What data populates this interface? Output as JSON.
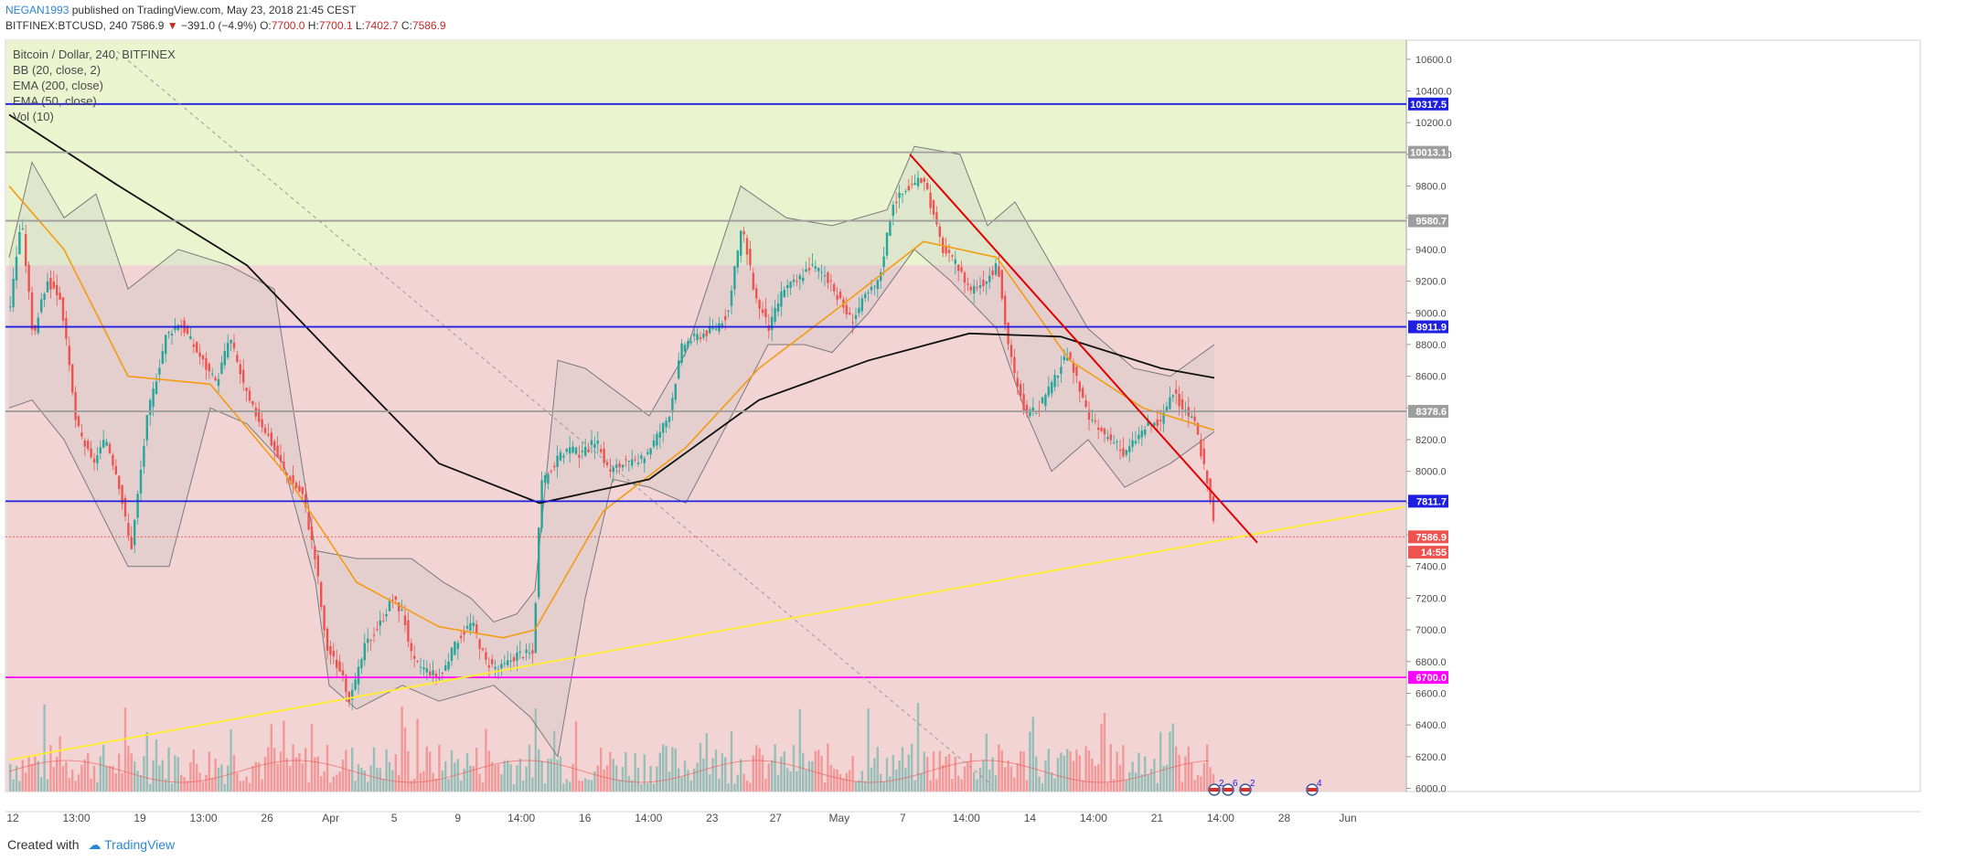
{
  "header": {
    "author": "NEGAN1993",
    "published_text": "published on TradingView.com, May 23, 2018 21:45 CEST",
    "symbol_line_prefix": "BITFINEX:BTCUSD, 240",
    "last": "7586.9",
    "change": "−391.0 (−4.9%)",
    "o_label": "O:",
    "o": "7700.0",
    "h_label": "H:",
    "h": "7700.1",
    "l_label": "L:",
    "l": "7402.7",
    "c_label": "C:",
    "c": "7586.9"
  },
  "legend": {
    "title": "Bitcoin / Dollar, 240, BITFINEX",
    "bb": "BB (20, close, 2)",
    "ema200": "EMA (200, close)",
    "ema50": "EMA (50, close)",
    "vol": "Vol (10)"
  },
  "footer": {
    "created_with": "Created with",
    "brand": "TradingView"
  },
  "colors": {
    "green_zone": "#eaf5d0",
    "red_zone": "#f3d4d4",
    "bull": "#26a69a",
    "bear": "#ef5350",
    "ema200": "#111111",
    "ema50": "#f39c12",
    "bb": "#7a7a7a",
    "blue_level": "#1f1fe0",
    "magenta_level": "#ff00ff",
    "trendline_down": "#e00000",
    "trendline_up": "#ffeb3b",
    "grey_level": "#9e9e9e"
  },
  "chart_data": {
    "type": "candlestick",
    "ylim": [
      5980,
      10720
    ],
    "y_ticks": [
      6000,
      6200,
      6400,
      6600,
      6800,
      7000,
      7200,
      7400,
      7600,
      7800,
      8000,
      8200,
      8400,
      8600,
      8800,
      9000,
      9200,
      9400,
      9600,
      9800,
      10000,
      10200,
      10400,
      10600
    ],
    "x_labels": [
      "12",
      "13:00",
      "19",
      "13:00",
      "26",
      "Apr",
      "5",
      "9",
      "14:00",
      "16",
      "14:00",
      "23",
      "27",
      "May",
      "7",
      "14:00",
      "14",
      "14:00",
      "21",
      "14:00",
      "28",
      "Jun"
    ],
    "price_labels": [
      {
        "label": "10317.5",
        "value": 10317.5,
        "kind": "blue"
      },
      {
        "label": "10013.1",
        "value": 10013.1,
        "kind": "grey"
      },
      {
        "label": "9580.7",
        "value": 9580.7,
        "kind": "grey"
      },
      {
        "label": "8911.9",
        "value": 8911.9,
        "kind": "blue"
      },
      {
        "label": "8378.6",
        "value": 8378.6,
        "kind": "grey"
      },
      {
        "label": "7811.7",
        "value": 7811.7,
        "kind": "blue"
      },
      {
        "label": "7586.9",
        "value": 7586.9,
        "kind": "last"
      },
      {
        "label": "14:55",
        "value": 7490,
        "kind": "timer"
      },
      {
        "label": "6700.0",
        "value": 6700.0,
        "kind": "magenta"
      }
    ],
    "zones": [
      {
        "name": "green",
        "from": 9300,
        "to": 10720
      },
      {
        "name": "red",
        "from": 5980,
        "to": 9300
      }
    ],
    "close_path": [
      [
        0,
        9050
      ],
      [
        12,
        9600
      ],
      [
        25,
        8850
      ],
      [
        40,
        9200
      ],
      [
        55,
        9100
      ],
      [
        72,
        8300
      ],
      [
        90,
        8050
      ],
      [
        105,
        8200
      ],
      [
        118,
        7950
      ],
      [
        132,
        7500
      ],
      [
        150,
        8350
      ],
      [
        170,
        8850
      ],
      [
        185,
        8950
      ],
      [
        205,
        8750
      ],
      [
        225,
        8550
      ],
      [
        240,
        8850
      ],
      [
        260,
        8450
      ],
      [
        280,
        8250
      ],
      [
        300,
        8000
      ],
      [
        320,
        7850
      ],
      [
        335,
        7400
      ],
      [
        345,
        6900
      ],
      [
        360,
        6750
      ],
      [
        372,
        6550
      ],
      [
        388,
        6900
      ],
      [
        405,
        7050
      ],
      [
        418,
        7200
      ],
      [
        430,
        7100
      ],
      [
        440,
        6800
      ],
      [
        455,
        6750
      ],
      [
        470,
        6700
      ],
      [
        490,
        6950
      ],
      [
        505,
        7050
      ],
      [
        520,
        6800
      ],
      [
        535,
        6750
      ],
      [
        555,
        6850
      ],
      [
        572,
        6850
      ],
      [
        580,
        7900
      ],
      [
        595,
        8050
      ],
      [
        610,
        8150
      ],
      [
        625,
        8100
      ],
      [
        640,
        8200
      ],
      [
        655,
        8000
      ],
      [
        670,
        8050
      ],
      [
        688,
        8050
      ],
      [
        705,
        8200
      ],
      [
        720,
        8350
      ],
      [
        735,
        8800
      ],
      [
        750,
        8850
      ],
      [
        770,
        8900
      ],
      [
        785,
        9000
      ],
      [
        800,
        9550
      ],
      [
        815,
        9100
      ],
      [
        830,
        8900
      ],
      [
        845,
        9150
      ],
      [
        860,
        9200
      ],
      [
        875,
        9300
      ],
      [
        890,
        9250
      ],
      [
        905,
        9100
      ],
      [
        920,
        8950
      ],
      [
        935,
        9100
      ],
      [
        950,
        9200
      ],
      [
        965,
        9700
      ],
      [
        985,
        9800
      ],
      [
        1000,
        9850
      ],
      [
        1010,
        9600
      ],
      [
        1020,
        9400
      ],
      [
        1035,
        9300
      ],
      [
        1050,
        9150
      ],
      [
        1065,
        9200
      ],
      [
        1080,
        9300
      ],
      [
        1090,
        8850
      ],
      [
        1100,
        8550
      ],
      [
        1112,
        8350
      ],
      [
        1125,
        8400
      ],
      [
        1140,
        8550
      ],
      [
        1155,
        8750
      ],
      [
        1165,
        8600
      ],
      [
        1178,
        8350
      ],
      [
        1192,
        8250
      ],
      [
        1205,
        8200
      ],
      [
        1218,
        8100
      ],
      [
        1230,
        8200
      ],
      [
        1245,
        8300
      ],
      [
        1258,
        8300
      ],
      [
        1270,
        8500
      ],
      [
        1283,
        8400
      ],
      [
        1295,
        8300
      ],
      [
        1305,
        8050
      ],
      [
        1313,
        7800
      ],
      [
        1318,
        7590
      ]
    ],
    "ema200": [
      [
        0,
        10250
      ],
      [
        120,
        9800
      ],
      [
        260,
        9300
      ],
      [
        360,
        8700
      ],
      [
        470,
        8050
      ],
      [
        580,
        7800
      ],
      [
        700,
        7950
      ],
      [
        820,
        8450
      ],
      [
        940,
        8700
      ],
      [
        1050,
        8870
      ],
      [
        1150,
        8850
      ],
      [
        1260,
        8650
      ],
      [
        1318,
        8590
      ]
    ],
    "ema50": [
      [
        0,
        9800
      ],
      [
        60,
        9400
      ],
      [
        130,
        8600
      ],
      [
        220,
        8550
      ],
      [
        300,
        8000
      ],
      [
        380,
        7300
      ],
      [
        470,
        7020
      ],
      [
        540,
        6950
      ],
      [
        575,
        7000
      ],
      [
        650,
        7750
      ],
      [
        740,
        8150
      ],
      [
        820,
        8650
      ],
      [
        900,
        9000
      ],
      [
        1000,
        9450
      ],
      [
        1080,
        9350
      ],
      [
        1160,
        8700
      ],
      [
        1240,
        8400
      ],
      [
        1318,
        8260
      ]
    ],
    "bb_upper": [
      [
        0,
        9350
      ],
      [
        25,
        9950
      ],
      [
        60,
        9600
      ],
      [
        95,
        9750
      ],
      [
        130,
        9150
      ],
      [
        185,
        9400
      ],
      [
        240,
        9300
      ],
      [
        290,
        9150
      ],
      [
        335,
        7500
      ],
      [
        380,
        7450
      ],
      [
        440,
        7450
      ],
      [
        475,
        7300
      ],
      [
        505,
        7200
      ],
      [
        530,
        7050
      ],
      [
        555,
        7100
      ],
      [
        575,
        7250
      ],
      [
        600,
        8700
      ],
      [
        630,
        8650
      ],
      [
        700,
        8350
      ],
      [
        740,
        8750
      ],
      [
        800,
        9800
      ],
      [
        850,
        9600
      ],
      [
        900,
        9550
      ],
      [
        960,
        9650
      ],
      [
        990,
        10050
      ],
      [
        1040,
        10000
      ],
      [
        1070,
        9550
      ],
      [
        1100,
        9700
      ],
      [
        1140,
        9300
      ],
      [
        1180,
        8900
      ],
      [
        1230,
        8650
      ],
      [
        1270,
        8600
      ],
      [
        1318,
        8800
      ]
    ],
    "bb_lower": [
      [
        0,
        8400
      ],
      [
        25,
        8450
      ],
      [
        60,
        8200
      ],
      [
        95,
        7800
      ],
      [
        130,
        7400
      ],
      [
        175,
        7400
      ],
      [
        220,
        8400
      ],
      [
        260,
        8300
      ],
      [
        300,
        8050
      ],
      [
        335,
        7300
      ],
      [
        350,
        6650
      ],
      [
        380,
        6500
      ],
      [
        430,
        6650
      ],
      [
        470,
        6550
      ],
      [
        500,
        6600
      ],
      [
        530,
        6650
      ],
      [
        570,
        6450
      ],
      [
        600,
        6200
      ],
      [
        630,
        7200
      ],
      [
        660,
        7950
      ],
      [
        700,
        7900
      ],
      [
        740,
        7800
      ],
      [
        790,
        8350
      ],
      [
        830,
        8800
      ],
      [
        870,
        8800
      ],
      [
        900,
        8750
      ],
      [
        940,
        9000
      ],
      [
        990,
        9400
      ],
      [
        1030,
        9200
      ],
      [
        1080,
        8900
      ],
      [
        1110,
        8400
      ],
      [
        1140,
        8000
      ],
      [
        1180,
        8200
      ],
      [
        1220,
        7900
      ],
      [
        1270,
        8050
      ],
      [
        1318,
        8250
      ]
    ],
    "trendline_down": [
      [
        985,
        10000
      ],
      [
        1365,
        7550
      ]
    ],
    "trendline_up": [
      [
        0,
        6180
      ],
      [
        1525,
        7775
      ]
    ],
    "dashed_line": [
      [
        118,
        10650
      ],
      [
        1075,
        6020
      ]
    ]
  }
}
